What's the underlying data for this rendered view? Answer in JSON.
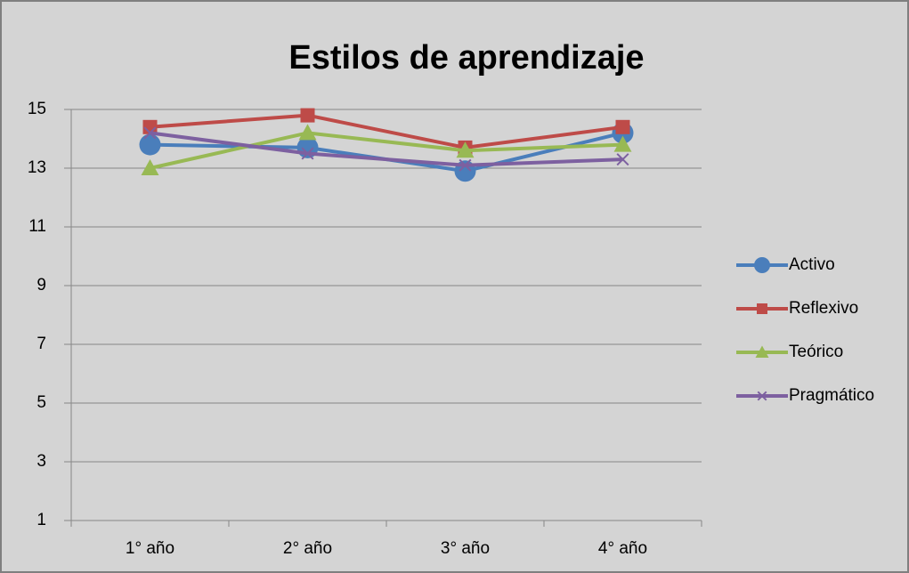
{
  "chart_data": {
    "type": "line",
    "title": "Estilos de aprendizaje",
    "categories": [
      "1° año",
      "2° año",
      "3° año",
      "4° año"
    ],
    "series": [
      {
        "name": "Activo",
        "color": "#4a7ebb",
        "marker": "circle",
        "values": [
          13.8,
          13.7,
          12.9,
          14.2
        ]
      },
      {
        "name": "Reflexivo",
        "color": "#be4b48",
        "marker": "square",
        "values": [
          14.4,
          14.8,
          13.7,
          14.4
        ]
      },
      {
        "name": "Teórico",
        "color": "#98b954",
        "marker": "triangle",
        "values": [
          13.0,
          14.2,
          13.6,
          13.8
        ]
      },
      {
        "name": "Pragmático",
        "color": "#7d60a0",
        "marker": "x",
        "values": [
          14.2,
          13.5,
          13.1,
          13.3
        ]
      }
    ],
    "ylim": [
      1,
      15
    ],
    "yticks": [
      1,
      3,
      5,
      7,
      9,
      11,
      13,
      15
    ],
    "grid": true,
    "legend": "right"
  }
}
